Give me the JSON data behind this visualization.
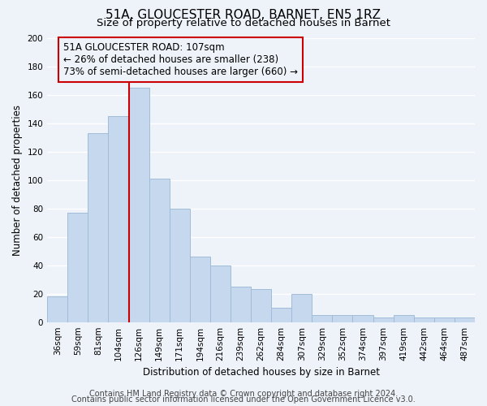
{
  "title": "51A, GLOUCESTER ROAD, BARNET, EN5 1RZ",
  "subtitle": "Size of property relative to detached houses in Barnet",
  "xlabel": "Distribution of detached houses by size in Barnet",
  "ylabel": "Number of detached properties",
  "bar_labels": [
    "36sqm",
    "59sqm",
    "81sqm",
    "104sqm",
    "126sqm",
    "149sqm",
    "171sqm",
    "194sqm",
    "216sqm",
    "239sqm",
    "262sqm",
    "284sqm",
    "307sqm",
    "329sqm",
    "352sqm",
    "374sqm",
    "397sqm",
    "419sqm",
    "442sqm",
    "464sqm",
    "487sqm"
  ],
  "bar_values": [
    18,
    77,
    133,
    145,
    165,
    101,
    80,
    46,
    40,
    25,
    23,
    10,
    20,
    5,
    5,
    5,
    3,
    5,
    3,
    3,
    3
  ],
  "bar_color": "#c5d8ed",
  "bar_edge_color": "#a0bcd8",
  "vline_color": "#cc0000",
  "vline_pos": 3.5,
  "annotation_line1": "51A GLOUCESTER ROAD: 107sqm",
  "annotation_line2": "← 26% of detached houses are smaller (238)",
  "annotation_line3": "73% of semi-detached houses are larger (660) →",
  "annotation_box_edge": "#cc0000",
  "ylim": [
    0,
    200
  ],
  "yticks": [
    0,
    20,
    40,
    60,
    80,
    100,
    120,
    140,
    160,
    180,
    200
  ],
  "footer1": "Contains HM Land Registry data © Crown copyright and database right 2024.",
  "footer2": "Contains public sector information licensed under the Open Government Licence v3.0.",
  "bg_color": "#eef2f9",
  "grid_color": "#ffffff",
  "title_fontsize": 11,
  "subtitle_fontsize": 9.5,
  "axis_label_fontsize": 8.5,
  "tick_fontsize": 7.5,
  "annotation_fontsize": 8.5,
  "footer_fontsize": 7
}
